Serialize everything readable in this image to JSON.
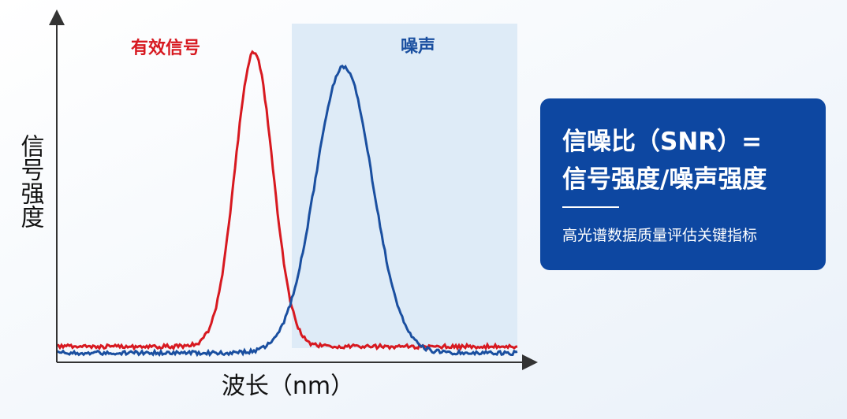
{
  "plot": {
    "y_axis_label": "信号强度",
    "x_axis_label": "波长（nm）",
    "signal_label": "有效信号",
    "noise_label": "噪声"
  },
  "info_box": {
    "title_line1": "信噪比（SNR）=",
    "title_line2": "信号强度/噪声强度",
    "subtitle": "高光谱数据质量评估关键指标"
  }
}
